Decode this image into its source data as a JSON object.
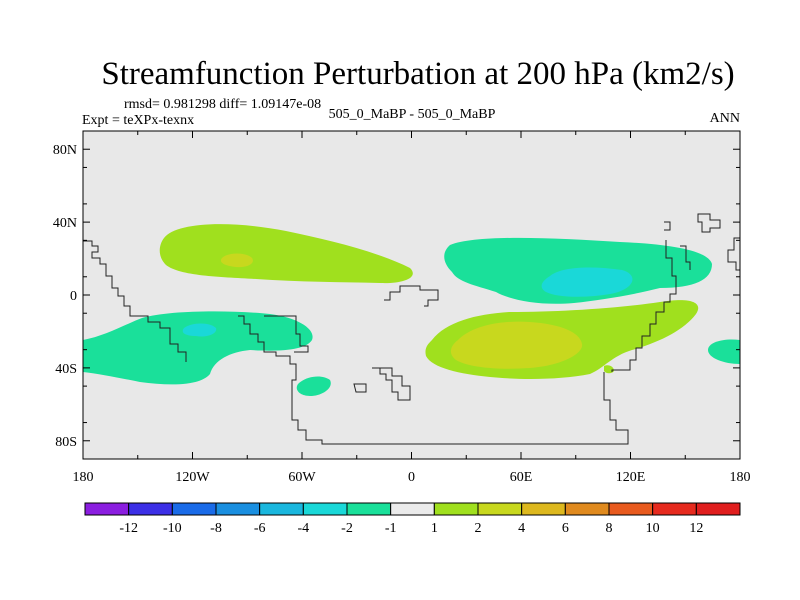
{
  "chart_data": {
    "type": "contour-map",
    "title": "Streamfunction Perturbation at 200 hPa (km2/s)",
    "rmsd_line": "rmsd= 0.981298 diff= 1.09147e-08",
    "left_label": "Expt = teXPx-texnx",
    "center_label": "505_0_MaBP - 505_0_MaBP",
    "right_label": "ANN",
    "lon_range": [
      -180,
      180
    ],
    "lat_range": [
      -90,
      90
    ],
    "x_ticks": [
      {
        "value": -180,
        "label": "180"
      },
      {
        "value": -120,
        "label": "120W"
      },
      {
        "value": -60,
        "label": "60W"
      },
      {
        "value": 0,
        "label": "0"
      },
      {
        "value": 60,
        "label": "60E"
      },
      {
        "value": 120,
        "label": "120E"
      },
      {
        "value": 180,
        "label": "180"
      }
    ],
    "y_ticks": [
      {
        "value": 80,
        "label": "80N"
      },
      {
        "value": 40,
        "label": "40N"
      },
      {
        "value": 0,
        "label": "0"
      },
      {
        "value": -40,
        "label": "40S"
      },
      {
        "value": -80,
        "label": "80S"
      }
    ],
    "colorbar": {
      "labels": [
        "-12",
        "-10",
        "-8",
        "-6",
        "-4",
        "-2",
        "-1",
        "1",
        "2",
        "4",
        "6",
        "8",
        "10",
        "12"
      ],
      "colors": [
        "#8b1ee0",
        "#3c2fe6",
        "#1a6be8",
        "#1a8fe0",
        "#1ab7de",
        "#1ad8d8",
        "#1ae09a",
        "#ebebeb",
        "#a0e01e",
        "#c8d81e",
        "#ddb81e",
        "#e08a1e",
        "#e85a1e",
        "#e62a1e",
        "#e01e1e"
      ]
    },
    "background_color": "#e8e8e8",
    "regions": [
      {
        "lon": -128,
        "lat": 23,
        "level": "1 to 2",
        "color": "#a0e01e"
      },
      {
        "lon": -96,
        "lat": 20,
        "level": "2 to 4",
        "color": "#c8d81e"
      },
      {
        "lon": 62,
        "lat": 25,
        "level": "-1 to -2",
        "color": "#1ae09a"
      },
      {
        "lon": 84,
        "lat": 4,
        "level": "-2 to -4",
        "color": "#1ad8d8"
      },
      {
        "lon": 70,
        "lat": -28,
        "level": "1 to 2",
        "color": "#a0e01e"
      },
      {
        "lon": 52,
        "lat": -30,
        "level": "2 to 4",
        "color": "#c8d81e"
      },
      {
        "lon": -150,
        "lat": -32,
        "level": "-1 to -2",
        "color": "#1ae09a"
      },
      {
        "lon": -127,
        "lat": -19,
        "level": "-2 to -4",
        "color": "#1ad8d8"
      },
      {
        "lon": -53,
        "lat": -51,
        "level": "-1 to -2",
        "color": "#1ae09a"
      },
      {
        "lon": 176,
        "lat": -30,
        "level": "-1 to -2",
        "color": "#1ae09a"
      }
    ]
  }
}
